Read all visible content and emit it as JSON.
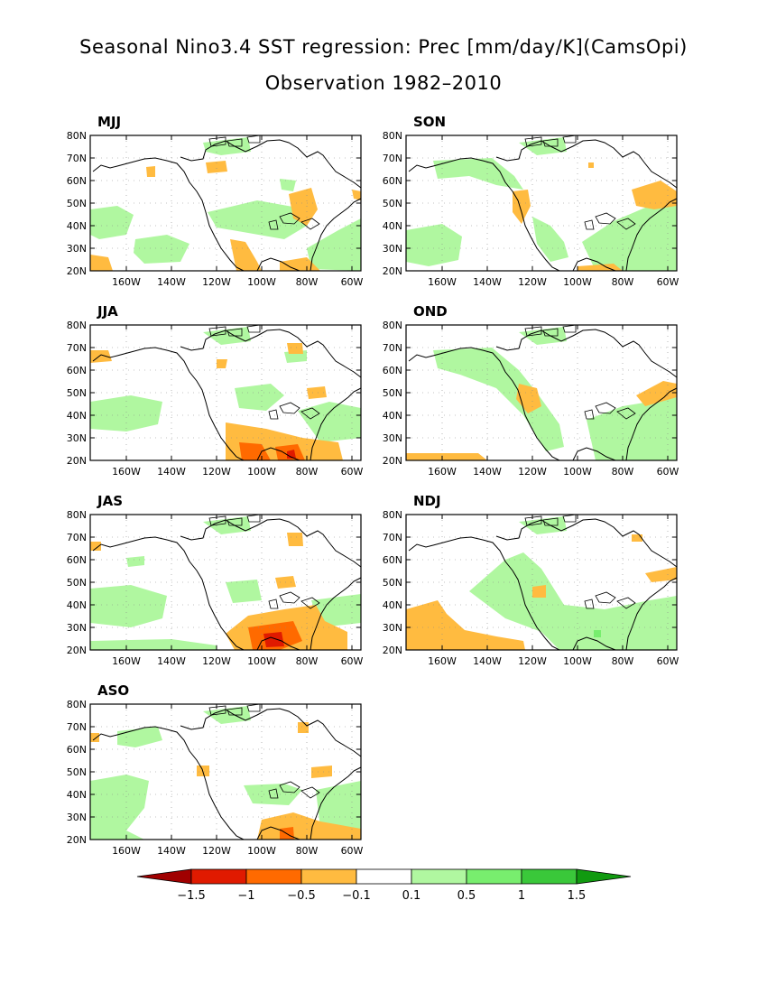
{
  "title": "Seasonal Nino3.4 SST regression: Prec [mm/day/K](CamsOpi)",
  "subtitle": "Observation 1982–2010",
  "lat_labels": [
    "80N",
    "70N",
    "60N",
    "50N",
    "40N",
    "30N",
    "20N"
  ],
  "lon_labels": [
    "160W",
    "140W",
    "120W",
    "100W",
    "80W",
    "60W"
  ],
  "colors": {
    "dark_red": "#a00000",
    "red": "#e01a00",
    "orange": "#ff6a00",
    "light_orange": "#ffbb40",
    "white": "#ffffff",
    "light_green": "#b0f7a0",
    "green": "#78ee6e",
    "mid_green": "#3ac83a",
    "dark_green": "#119a10"
  },
  "colorbar": {
    "labels": [
      "−1.5",
      "−1",
      "−0.5",
      "−0.1",
      "0.1",
      "0.5",
      "1",
      "1.5"
    ]
  },
  "panels": [
    {
      "id": "MJJ",
      "label": "MJJ"
    },
    {
      "id": "SON",
      "label": "SON"
    },
    {
      "id": "JJA",
      "label": "JJA"
    },
    {
      "id": "OND",
      "label": "OND"
    },
    {
      "id": "JAS",
      "label": "JAS"
    },
    {
      "id": "NDJ",
      "label": "NDJ"
    },
    {
      "id": "ASO",
      "label": "ASO"
    }
  ]
}
